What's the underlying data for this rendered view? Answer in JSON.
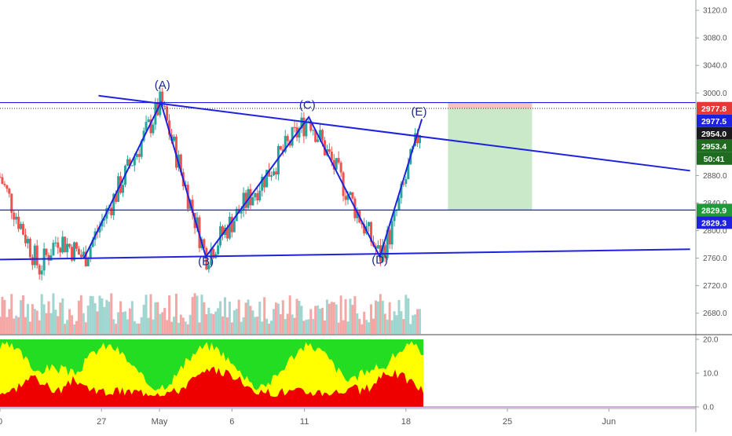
{
  "chart_data": {
    "type": "candlestick",
    "title": "",
    "price_axis": {
      "ticks": [
        "3120.0",
        "3080.0",
        "3040.0",
        "3000.0",
        "2880.0",
        "2840.0",
        "2800.0",
        "2760.0",
        "2720.0",
        "2680.0"
      ],
      "tick_values": [
        3120,
        3080,
        3040,
        3000,
        2880,
        2840,
        2800,
        2760,
        2720,
        2680
      ],
      "range": [
        2650,
        3135
      ]
    },
    "price_labels": [
      {
        "text": "2977.8",
        "value": 2977.8,
        "color": "#e53935"
      },
      {
        "text": "2977.5",
        "value": 2977.5,
        "color": "#1e22e0"
      },
      {
        "text": "2954.0",
        "value": 2954.0,
        "color": "#1a1a1a"
      },
      {
        "text": "2953.4",
        "value": 2953.4,
        "color": "#1f6b1f"
      },
      {
        "text": "50:41",
        "value": 2930.0,
        "color": "#1f6b1f"
      },
      {
        "text": "2829.9",
        "value": 2829.9,
        "color": "#1f9a3a"
      },
      {
        "text": "2829.3",
        "value": 2829.3,
        "color": "#1e22e0"
      }
    ],
    "x_axis": {
      "labels": [
        {
          "text": "0",
          "day": 0
        },
        {
          "text": "27",
          "day": 7
        },
        {
          "text": "May",
          "day": 11
        },
        {
          "text": "6",
          "day": 16
        },
        {
          "text": "11",
          "day": 21
        },
        {
          "text": "18",
          "day": 28
        },
        {
          "text": "25",
          "day": 35
        },
        {
          "text": "Jun",
          "day": 42
        }
      ],
      "range": [
        0,
        48
      ]
    },
    "wave_labels": [
      {
        "text": "(A)",
        "day": 11.2,
        "price": 3006
      },
      {
        "text": "(B)",
        "day": 14.2,
        "price": 2750
      },
      {
        "text": "(C)",
        "day": 21.2,
        "price": 2977
      },
      {
        "text": "(D)",
        "day": 26.2,
        "price": 2752
      },
      {
        "text": "(E)",
        "day": 28.9,
        "price": 2967
      }
    ],
    "wave_path": [
      {
        "day": 5.8,
        "price": 2760
      },
      {
        "day": 11.1,
        "price": 2986
      },
      {
        "day": 14.2,
        "price": 2762
      },
      {
        "day": 21.3,
        "price": 2965
      },
      {
        "day": 26.2,
        "price": 2762
      },
      {
        "day": 29.1,
        "price": 2962
      }
    ],
    "trendlines": [
      {
        "from": {
          "day": 6.8,
          "price": 2996
        },
        "to": {
          "day": 47.6,
          "price": 2887
        }
      },
      {
        "from": {
          "day": 0,
          "price": 2758
        },
        "to": {
          "day": 47.6,
          "price": 2773
        }
      }
    ],
    "horizontal_lines": [
      {
        "price": 2986,
        "style": "solid"
      },
      {
        "price": 2829.9,
        "style": "solid"
      },
      {
        "price": 2977.5,
        "style": "dotted"
      }
    ],
    "position_box": {
      "day_start": 30.9,
      "day_end": 36.7,
      "entry": 2977.5,
      "stop": 2986,
      "target": 2829.9
    },
    "oscillator": {
      "ticks": [
        "20.0",
        "10.0",
        "0.0"
      ],
      "tick_values": [
        20,
        10,
        0
      ],
      "range": [
        0,
        20
      ]
    },
    "colors": {
      "up": "#26a69a",
      "down": "#ef5350",
      "line": "#1e22e0",
      "green_zone": "#22dd22",
      "yellow_zone": "#ffff00",
      "red_zone": "#ee0000"
    }
  }
}
